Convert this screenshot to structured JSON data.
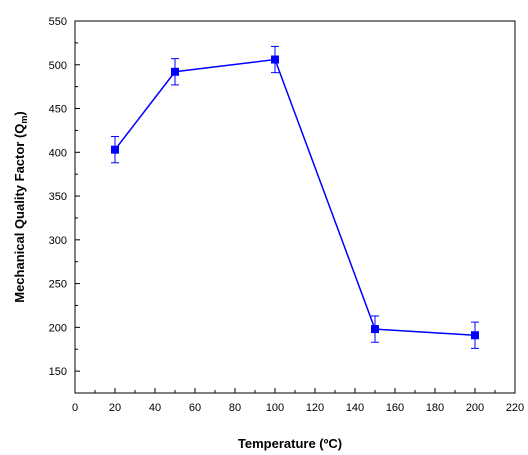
{
  "chart_data": {
    "type": "line",
    "title": "",
    "xlabel": "Temperature (ºC)",
    "ylabel": "Mechanical Quality Factor (Q",
    "ylabel_subscript": "m",
    "ylabel_suffix": ")",
    "xlim": [
      0,
      220
    ],
    "ylim": [
      125,
      550
    ],
    "xticks": [
      0,
      20,
      40,
      60,
      80,
      100,
      120,
      140,
      160,
      180,
      200,
      220
    ],
    "yticks": [
      150,
      200,
      250,
      300,
      350,
      400,
      450,
      500,
      550
    ],
    "grid": false,
    "series": [
      {
        "x": [
          20,
          50,
          100,
          150,
          200
        ],
        "y": [
          403,
          492,
          506,
          198,
          191
        ],
        "error": [
          15,
          15,
          15,
          15,
          15
        ],
        "color": "#0000ff",
        "marker": "square"
      }
    ]
  }
}
